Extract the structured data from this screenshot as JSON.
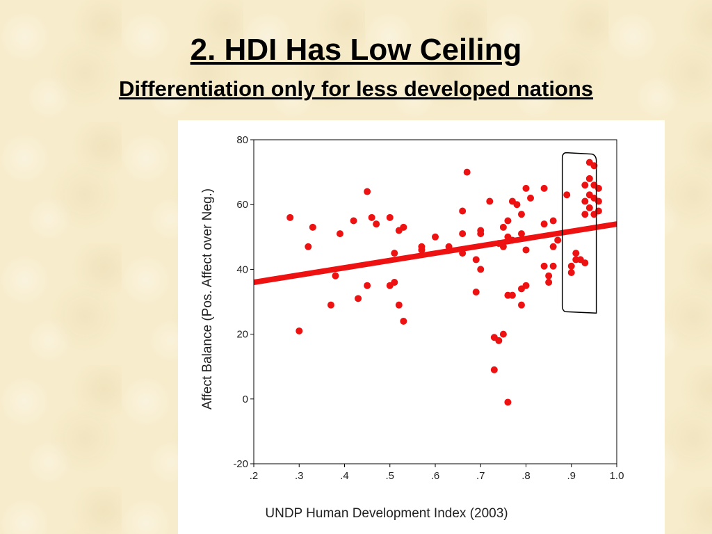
{
  "slide": {
    "title": "2. HDI Has Low Ceiling",
    "subtitle": "Differentiation only for less developed nations"
  },
  "chart_data": {
    "type": "scatter",
    "xlabel": "UNDP Human Development Index (2003)",
    "ylabel": "Affect Balance (Pos. Affect over Neg.)",
    "xlim": [
      0.2,
      1.0
    ],
    "ylim": [
      -20,
      80
    ],
    "xticks": [
      0.2,
      0.3,
      0.4,
      0.5,
      0.6,
      0.7,
      0.8,
      0.9,
      1.0
    ],
    "xtick_labels": [
      ".2",
      ".3",
      ".4",
      ".5",
      ".6",
      ".7",
      ".8",
      ".9",
      "1.0"
    ],
    "yticks": [
      -20,
      0,
      20,
      40,
      60,
      80
    ],
    "ytick_labels": [
      "-20",
      "0",
      "20",
      "40",
      "60",
      "80"
    ],
    "grid": false,
    "point_color": "#ee1111",
    "fit_line": {
      "x": [
        0.2,
        1.0
      ],
      "y": [
        36,
        54
      ],
      "color": "#ee1111"
    },
    "highlight_box": {
      "x": [
        0.88,
        0.955
      ],
      "y": [
        26.5,
        76
      ],
      "color": "#000000"
    },
    "points": [
      {
        "x": 0.28,
        "y": 56
      },
      {
        "x": 0.3,
        "y": 21
      },
      {
        "x": 0.32,
        "y": 47
      },
      {
        "x": 0.33,
        "y": 53
      },
      {
        "x": 0.37,
        "y": 29
      },
      {
        "x": 0.38,
        "y": 38
      },
      {
        "x": 0.39,
        "y": 51
      },
      {
        "x": 0.42,
        "y": 55
      },
      {
        "x": 0.43,
        "y": 31
      },
      {
        "x": 0.45,
        "y": 64
      },
      {
        "x": 0.45,
        "y": 35
      },
      {
        "x": 0.46,
        "y": 56
      },
      {
        "x": 0.47,
        "y": 54
      },
      {
        "x": 0.5,
        "y": 56
      },
      {
        "x": 0.5,
        "y": 35
      },
      {
        "x": 0.51,
        "y": 36
      },
      {
        "x": 0.51,
        "y": 45
      },
      {
        "x": 0.52,
        "y": 29
      },
      {
        "x": 0.52,
        "y": 52
      },
      {
        "x": 0.53,
        "y": 53
      },
      {
        "x": 0.53,
        "y": 24
      },
      {
        "x": 0.57,
        "y": 46
      },
      {
        "x": 0.57,
        "y": 47
      },
      {
        "x": 0.6,
        "y": 50
      },
      {
        "x": 0.63,
        "y": 47
      },
      {
        "x": 0.66,
        "y": 58
      },
      {
        "x": 0.66,
        "y": 51
      },
      {
        "x": 0.66,
        "y": 45
      },
      {
        "x": 0.67,
        "y": 70
      },
      {
        "x": 0.69,
        "y": 43
      },
      {
        "x": 0.69,
        "y": 33
      },
      {
        "x": 0.7,
        "y": 52
      },
      {
        "x": 0.7,
        "y": 40
      },
      {
        "x": 0.7,
        "y": 51
      },
      {
        "x": 0.72,
        "y": 61
      },
      {
        "x": 0.73,
        "y": 19
      },
      {
        "x": 0.73,
        "y": 9
      },
      {
        "x": 0.74,
        "y": 18
      },
      {
        "x": 0.74,
        "y": 48
      },
      {
        "x": 0.75,
        "y": 20
      },
      {
        "x": 0.75,
        "y": 47
      },
      {
        "x": 0.75,
        "y": 53
      },
      {
        "x": 0.76,
        "y": 55
      },
      {
        "x": 0.76,
        "y": 32
      },
      {
        "x": 0.76,
        "y": 50
      },
      {
        "x": 0.76,
        "y": -1
      },
      {
        "x": 0.77,
        "y": 61
      },
      {
        "x": 0.77,
        "y": 32
      },
      {
        "x": 0.77,
        "y": 49
      },
      {
        "x": 0.78,
        "y": 60
      },
      {
        "x": 0.79,
        "y": 57
      },
      {
        "x": 0.79,
        "y": 34
      },
      {
        "x": 0.79,
        "y": 29
      },
      {
        "x": 0.79,
        "y": 51
      },
      {
        "x": 0.8,
        "y": 65
      },
      {
        "x": 0.8,
        "y": 46
      },
      {
        "x": 0.8,
        "y": 35
      },
      {
        "x": 0.81,
        "y": 62
      },
      {
        "x": 0.84,
        "y": 65
      },
      {
        "x": 0.84,
        "y": 54
      },
      {
        "x": 0.84,
        "y": 41
      },
      {
        "x": 0.85,
        "y": 38
      },
      {
        "x": 0.85,
        "y": 36
      },
      {
        "x": 0.86,
        "y": 41
      },
      {
        "x": 0.86,
        "y": 55
      },
      {
        "x": 0.86,
        "y": 47
      },
      {
        "x": 0.87,
        "y": 49
      },
      {
        "x": 0.89,
        "y": 63
      },
      {
        "x": 0.9,
        "y": 39
      },
      {
        "x": 0.9,
        "y": 41
      },
      {
        "x": 0.91,
        "y": 45
      },
      {
        "x": 0.91,
        "y": 43
      },
      {
        "x": 0.92,
        "y": 43
      },
      {
        "x": 0.93,
        "y": 42
      },
      {
        "x": 0.93,
        "y": 57
      },
      {
        "x": 0.93,
        "y": 61
      },
      {
        "x": 0.93,
        "y": 66
      },
      {
        "x": 0.94,
        "y": 73
      },
      {
        "x": 0.94,
        "y": 68
      },
      {
        "x": 0.94,
        "y": 63
      },
      {
        "x": 0.94,
        "y": 59
      },
      {
        "x": 0.95,
        "y": 72
      },
      {
        "x": 0.95,
        "y": 66
      },
      {
        "x": 0.95,
        "y": 62
      },
      {
        "x": 0.95,
        "y": 57
      },
      {
        "x": 0.96,
        "y": 65
      },
      {
        "x": 0.96,
        "y": 61
      },
      {
        "x": 0.96,
        "y": 58
      }
    ]
  }
}
